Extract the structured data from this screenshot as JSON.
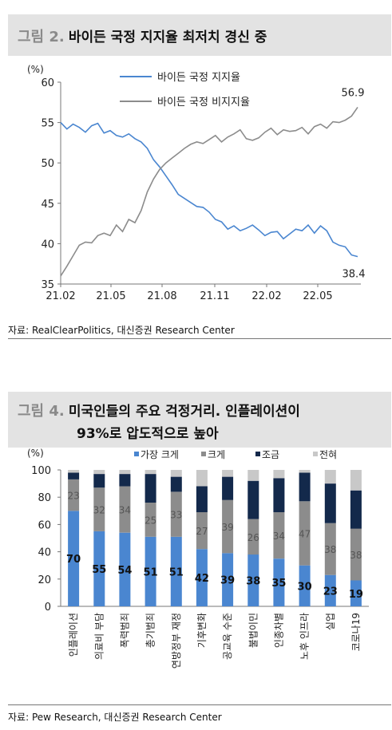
{
  "figure1": {
    "number": "그림 2.",
    "title": "바이든 국정 지지율 최저치 경신 중",
    "source": "자료: RealClearPolitics, 대신증권 Research Center",
    "chart_data": {
      "type": "line",
      "yunit": "(%)",
      "ylim": [
        35,
        60
      ],
      "yticks": [
        35,
        40,
        45,
        50,
        55,
        60
      ],
      "xticks": [
        "21.02",
        "21.05",
        "21.08",
        "21.11",
        "22.02",
        "22.05"
      ],
      "grid": false,
      "legend": "top-left",
      "colors": {
        "approve": "#4a86d0",
        "disapprove": "#8c8c8c"
      },
      "series": [
        {
          "name": "바이든 국정 지지율",
          "values": [
            55.0,
            54.2,
            54.8,
            54.4,
            53.8,
            54.6,
            54.9,
            53.7,
            54.0,
            53.4,
            53.2,
            53.6,
            53.0,
            52.6,
            51.8,
            50.4,
            49.5,
            48.4,
            47.3,
            46.1,
            45.6,
            45.1,
            44.6,
            44.5,
            43.9,
            43.0,
            42.7,
            41.8,
            42.2,
            41.6,
            41.9,
            42.3,
            41.7,
            41.0,
            41.4,
            41.5,
            40.6,
            41.2,
            41.8,
            41.6,
            42.3,
            41.3,
            42.2,
            41.6,
            40.2,
            39.8,
            39.6,
            38.6,
            38.4
          ],
          "end_label": "38.4"
        },
        {
          "name": "바이든 국정 비지지율",
          "values": [
            36.0,
            37.2,
            38.5,
            39.8,
            40.2,
            40.1,
            41.0,
            41.3,
            41.0,
            42.3,
            41.5,
            43.0,
            42.6,
            44.1,
            46.4,
            48.0,
            49.2,
            50.0,
            50.6,
            51.2,
            51.8,
            52.3,
            52.6,
            52.4,
            52.9,
            53.4,
            52.6,
            53.2,
            53.6,
            54.1,
            53.0,
            52.8,
            53.1,
            53.8,
            54.3,
            53.5,
            54.1,
            53.9,
            54.0,
            54.4,
            53.6,
            54.5,
            54.8,
            54.3,
            55.1,
            55.0,
            55.3,
            55.8,
            56.9
          ],
          "end_label": "56.9"
        }
      ]
    }
  },
  "figure2": {
    "number": "그림 4.",
    "title_line1": "미국인들의 주요 걱정거리. 인플레이션이",
    "title_line2": "93%로 압도적으로 높아",
    "source": "자료: Pew Research, 대신증권 Research Center",
    "chart_data": {
      "type": "bar",
      "stacked": true,
      "yunit": "(%)",
      "ylim": [
        0,
        100
      ],
      "yticks": [
        0,
        20,
        40,
        60,
        80,
        100
      ],
      "legend": "top",
      "categories": [
        "인플레이션",
        "의료비 부담",
        "폭력범죄",
        "총기범죄",
        "연방정부 재정",
        "기후변화",
        "공교육 수준",
        "불법이민",
        "인종차별",
        "노후 인프라",
        "실업",
        "코로나19"
      ],
      "series": [
        {
          "name": "가장 크게",
          "color": "#4a86d0",
          "values": [
            70,
            55,
            54,
            51,
            51,
            42,
            39,
            38,
            35,
            30,
            23,
            19
          ]
        },
        {
          "name": "크게",
          "color": "#8c8c8c",
          "values": [
            23,
            32,
            34,
            25,
            33,
            27,
            39,
            26,
            34,
            47,
            38,
            38
          ]
        },
        {
          "name": "조금",
          "color": "#13294b",
          "values": [
            5,
            10,
            9,
            21,
            11,
            19,
            17,
            28,
            25,
            21,
            29,
            28
          ]
        },
        {
          "name": "전혀",
          "color": "#c8c8c8",
          "values": [
            2,
            3,
            3,
            3,
            5,
            12,
            5,
            8,
            6,
            2,
            10,
            15
          ]
        }
      ]
    }
  }
}
